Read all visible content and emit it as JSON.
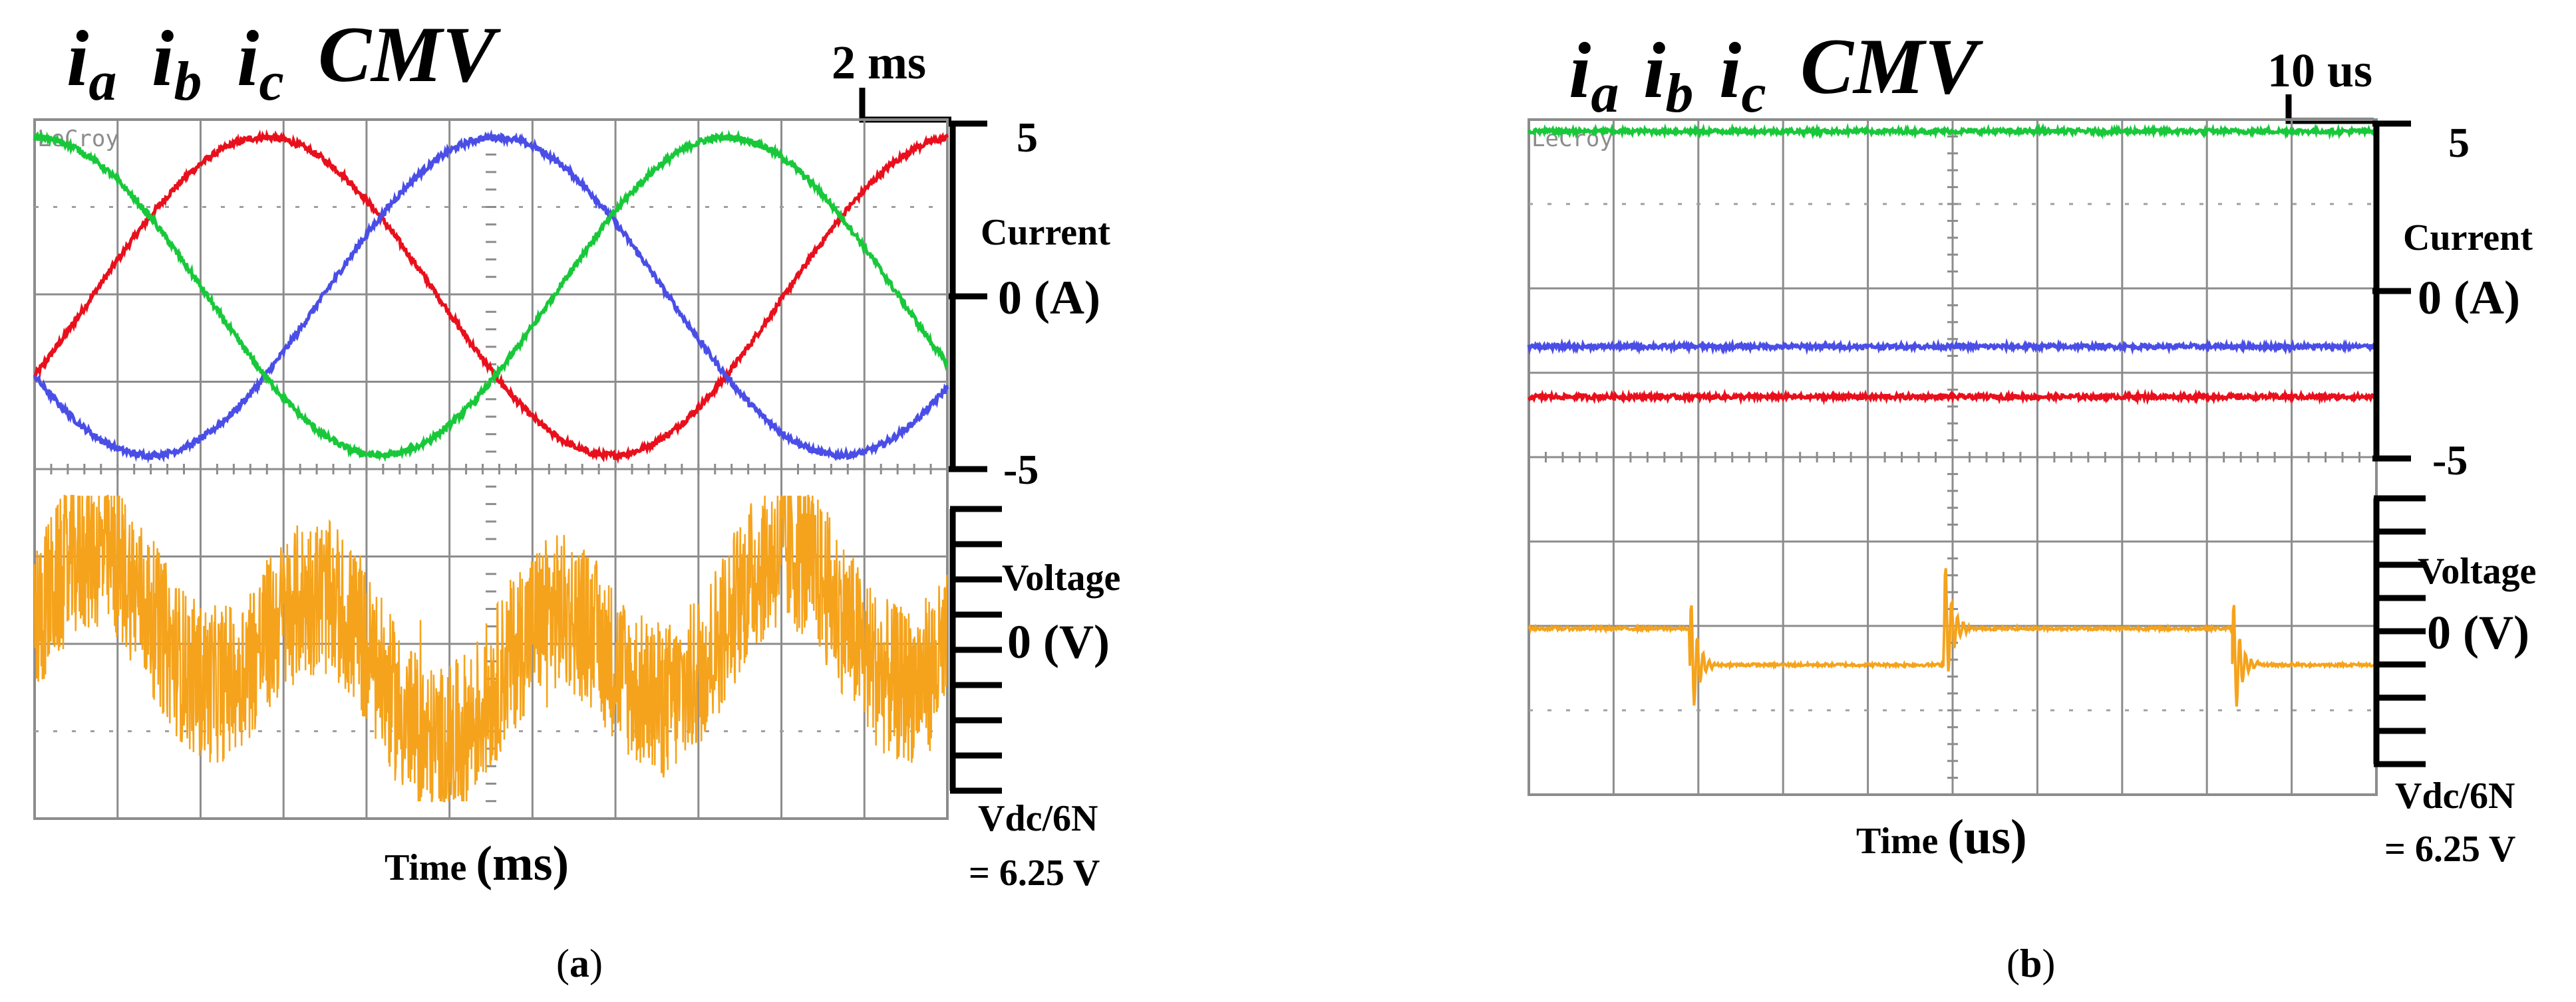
{
  "colors": {
    "ia": "#e8101c",
    "ib": "#4a4ee6",
    "ic": "#19c83a",
    "cmv": "#f5a31c",
    "grid": "#8c8c8c"
  },
  "panels": [
    {
      "id": "a",
      "legend": {
        "ia_base": "i",
        "ia_sub": "a",
        "ib_base": "i",
        "ib_sub": "b",
        "ic_base": "i",
        "ic_sub": "c",
        "cmv": "CMV"
      },
      "scale_label": "2 ms",
      "brand": "LeCroy",
      "current_label": "Current",
      "current_zero": "0 (A)",
      "current_top": "5",
      "current_bottom": "-5",
      "voltage_label": "Voltage",
      "voltage_zero": "0 (V)",
      "voltage_scale_line1": "Vdc/6N",
      "voltage_scale_line2": "= 6.25 V",
      "time_label_prefix": "Time ",
      "time_label_unit": "(ms)",
      "caption_open": "(",
      "caption_letter": "a",
      "caption_close": ")"
    },
    {
      "id": "b",
      "legend": {
        "ia_base": "i",
        "ia_sub": "a",
        "ib_base": "i",
        "ib_sub": "b",
        "ic_base": "i",
        "ic_sub": "c",
        "cmv": "CMV"
      },
      "scale_label": "10 us",
      "brand": "LeCroy",
      "current_label": "Current",
      "current_zero": "0 (A)",
      "current_top": "5",
      "current_bottom": "-5",
      "voltage_label": "Voltage",
      "voltage_zero": "0 (V)",
      "voltage_scale_line1": "Vdc/6N",
      "voltage_scale_line2": "= 6.25 V",
      "time_label_prefix": "Time ",
      "time_label_unit": "(us)",
      "caption_open": "(",
      "caption_letter": "b",
      "caption_close": ")"
    }
  ],
  "chart_data": [
    {
      "type": "line",
      "panel": "a",
      "xlabel": "Time (ms)",
      "x_units": "ms",
      "x_per_division": 2,
      "x_range": [
        0,
        22
      ],
      "current_axis": {
        "ylabel": "Current (A)",
        "ylim": [
          -5,
          5
        ],
        "ticks": [
          5,
          0,
          -5
        ]
      },
      "voltage_axis": {
        "ylabel": "Voltage (V)",
        "units_per_division": 6.25,
        "ylim": [
          -25,
          25
        ]
      },
      "series": [
        {
          "name": "ia",
          "axis": "current",
          "waveform": "sine",
          "amplitude_A": 4.6,
          "frequency_Hz": 60,
          "phase_deg": -30
        },
        {
          "name": "ib",
          "axis": "current",
          "waveform": "sine",
          "amplitude_A": 4.6,
          "frequency_Hz": 60,
          "phase_deg": -150
        },
        {
          "name": "ic",
          "axis": "current",
          "waveform": "sine",
          "amplitude_A": 4.6,
          "frequency_Hz": 60,
          "phase_deg": 90
        },
        {
          "name": "CMV",
          "axis": "voltage",
          "waveform": "switching-noise",
          "envelope_V": [
            -25,
            25
          ]
        }
      ]
    },
    {
      "type": "line",
      "panel": "b",
      "xlabel": "Time (us)",
      "x_units": "us",
      "x_per_division": 10,
      "x_range": [
        0,
        100
      ],
      "current_axis": {
        "ylabel": "Current (A)",
        "ylim": [
          -5,
          5
        ],
        "ticks": [
          5,
          0,
          -5
        ]
      },
      "voltage_axis": {
        "ylabel": "Voltage (V)",
        "units_per_division": 6.25,
        "ylim": [
          -25,
          25
        ]
      },
      "series": [
        {
          "name": "ia",
          "axis": "current",
          "waveform": "dc",
          "value_A": -2.8
        },
        {
          "name": "ib",
          "axis": "current",
          "waveform": "dc",
          "value_A": -1.4
        },
        {
          "name": "ic",
          "axis": "current",
          "waveform": "dc",
          "value_A": 4.6
        },
        {
          "name": "CMV",
          "axis": "voltage",
          "waveform": "steps",
          "x": [
            0,
            9,
            19,
            34,
            49,
            68,
            83,
            100
          ],
          "y": [
            0,
            0,
            -4.2,
            -4.2,
            0,
            0,
            -4.2,
            -4.2
          ]
        }
      ]
    }
  ]
}
